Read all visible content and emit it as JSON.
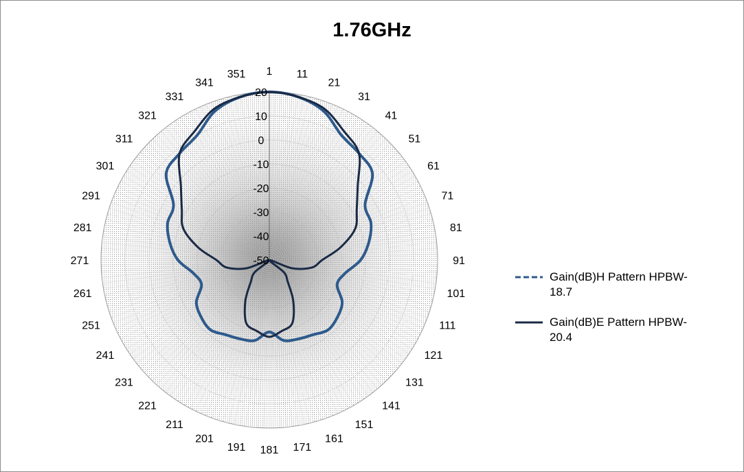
{
  "chart_data": {
    "type": "line",
    "subtype": "polar",
    "title": "1.76GHz",
    "angle_ticks": [
      "1",
      "11",
      "21",
      "31",
      "41",
      "51",
      "61",
      "71",
      "81",
      "91",
      "101",
      "111",
      "121",
      "131",
      "141",
      "151",
      "161",
      "171",
      "181",
      "191",
      "201",
      "211",
      "221",
      "231",
      "241",
      "251",
      "261",
      "271",
      "281",
      "291",
      "301",
      "311",
      "321",
      "331",
      "341",
      "351"
    ],
    "radial_ticks": [
      "20",
      "10",
      "0",
      "-10",
      "-20",
      "-30",
      "-40",
      "-50"
    ],
    "rlim": [
      -50,
      20
    ],
    "grid": true,
    "legend_position": "right",
    "series": [
      {
        "name": "Gain(dB)H Pattern  HPBW-18.7",
        "color": "#2e5a8c",
        "style": "dashed",
        "angles_deg": [
          0,
          10,
          20,
          30,
          40,
          50,
          60,
          70,
          80,
          90,
          100,
          110,
          120,
          130,
          140,
          150,
          160,
          170,
          180,
          190,
          200,
          210,
          220,
          230,
          240,
          250,
          260,
          270,
          280,
          290,
          300,
          310,
          320,
          330,
          340,
          350
        ],
        "values_db": [
          20,
          19,
          16,
          10,
          8,
          6,
          -4,
          -5,
          -8,
          -12,
          -18,
          -20,
          -15,
          -13,
          -12,
          -14,
          -15,
          -16,
          -20,
          -16,
          -15,
          -14,
          -12,
          -13,
          -15,
          -20,
          -18,
          -12,
          -8,
          -5,
          -4,
          6,
          8,
          10,
          16,
          19
        ]
      },
      {
        "name": "Gain(dB)E Pattern  HPBW-20.4",
        "color": "#1a2a45",
        "style": "solid",
        "angles_deg": [
          0,
          10,
          20,
          30,
          40,
          50,
          60,
          70,
          80,
          90,
          100,
          110,
          120,
          130,
          140,
          150,
          160,
          170,
          180,
          190,
          200,
          210,
          220,
          230,
          240,
          250,
          260,
          270,
          280,
          290,
          300,
          310,
          320,
          330,
          340,
          350
        ],
        "values_db": [
          20,
          19,
          17,
          12,
          8,
          -2,
          -8,
          -12,
          -20,
          -28,
          -32,
          -40,
          -50,
          -42,
          -38,
          -30,
          -22,
          -20,
          -18,
          -20,
          -22,
          -30,
          -38,
          -42,
          -50,
          -40,
          -32,
          -28,
          -20,
          -12,
          -8,
          -2,
          8,
          12,
          17,
          19
        ]
      }
    ]
  }
}
